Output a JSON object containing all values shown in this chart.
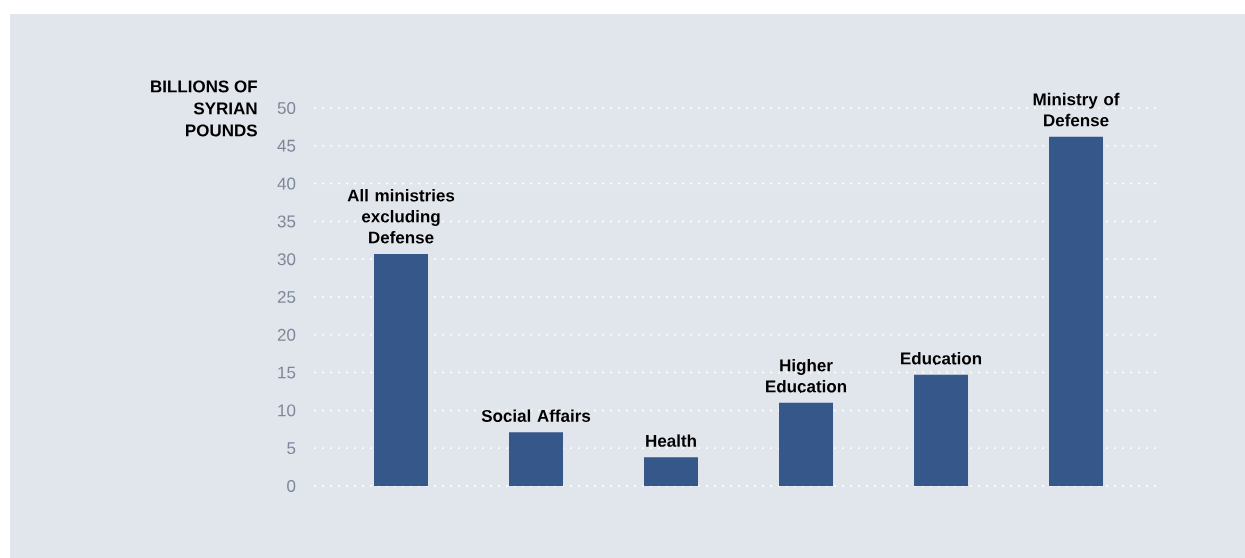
{
  "chart_data": {
    "type": "bar",
    "ylabel": "BILLIONS OF SYRIAN POUNDS",
    "categories": [
      "All ministries excluding Defense",
      "Social Affairs",
      "Health",
      "Higher Education",
      "Education",
      "Ministry of Defense"
    ],
    "values": [
      30.7,
      7.1,
      3.8,
      11.0,
      14.7,
      46.2
    ],
    "color": "#36578a",
    "ylim": [
      0,
      50
    ],
    "yticks": [
      0,
      5,
      10,
      15,
      20,
      25,
      30,
      35,
      40,
      45,
      50
    ],
    "grid": "y"
  }
}
